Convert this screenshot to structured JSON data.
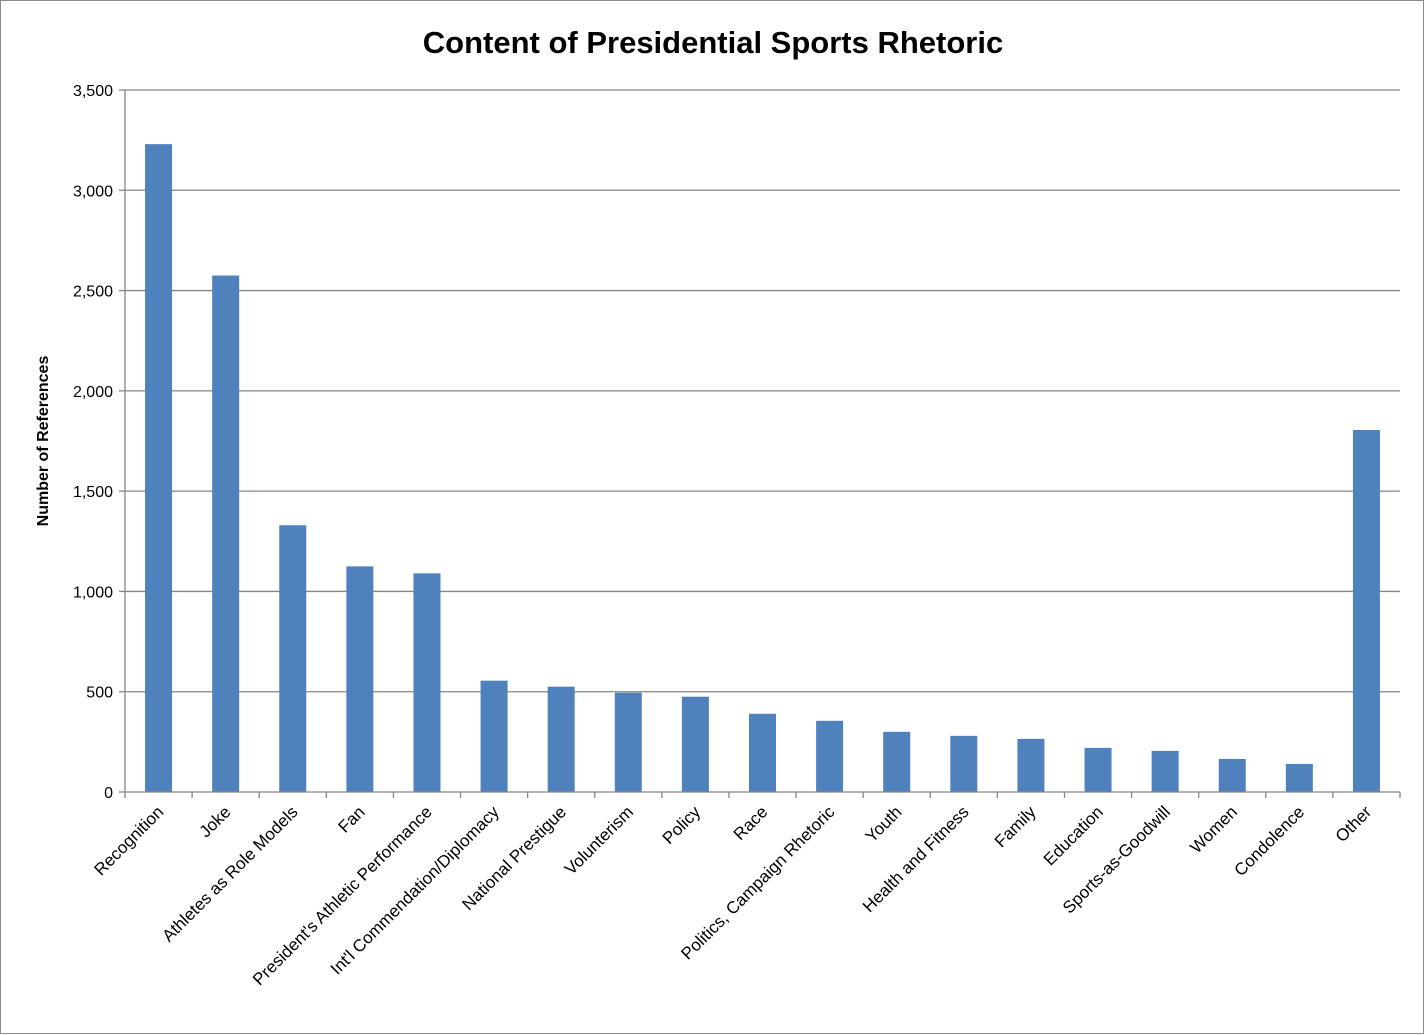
{
  "chart_data": {
    "type": "bar",
    "title": "Content of Presidential Sports Rhetoric",
    "xlabel": "",
    "ylabel": "Number of References",
    "ylim": [
      0,
      3500
    ],
    "yticks": [
      0,
      500,
      1000,
      1500,
      2000,
      2500,
      3000,
      3500
    ],
    "ytick_labels": [
      "0",
      "500",
      "1,000",
      "1,500",
      "2,000",
      "2,500",
      "3,000",
      "3,500"
    ],
    "grid": true,
    "legend": "none",
    "bar_color": "#4f81bd",
    "categories": [
      "Recognition",
      "Joke",
      "Athletes as Role Models",
      "Fan",
      "President's Athletic Performance",
      "Int'l Commendation/Diplomacy",
      "National Prestigue",
      "Volunterism",
      "Policy",
      "Race",
      "Politics, Campaign Rhetoric",
      "Youth",
      "Health and Fitness",
      "Family",
      "Education",
      "Sports-as-Goodwill",
      "Women",
      "Condolence",
      "Other"
    ],
    "values": [
      3230,
      2575,
      1330,
      1125,
      1090,
      555,
      525,
      495,
      475,
      390,
      355,
      300,
      280,
      265,
      220,
      205,
      165,
      140,
      1805
    ]
  }
}
